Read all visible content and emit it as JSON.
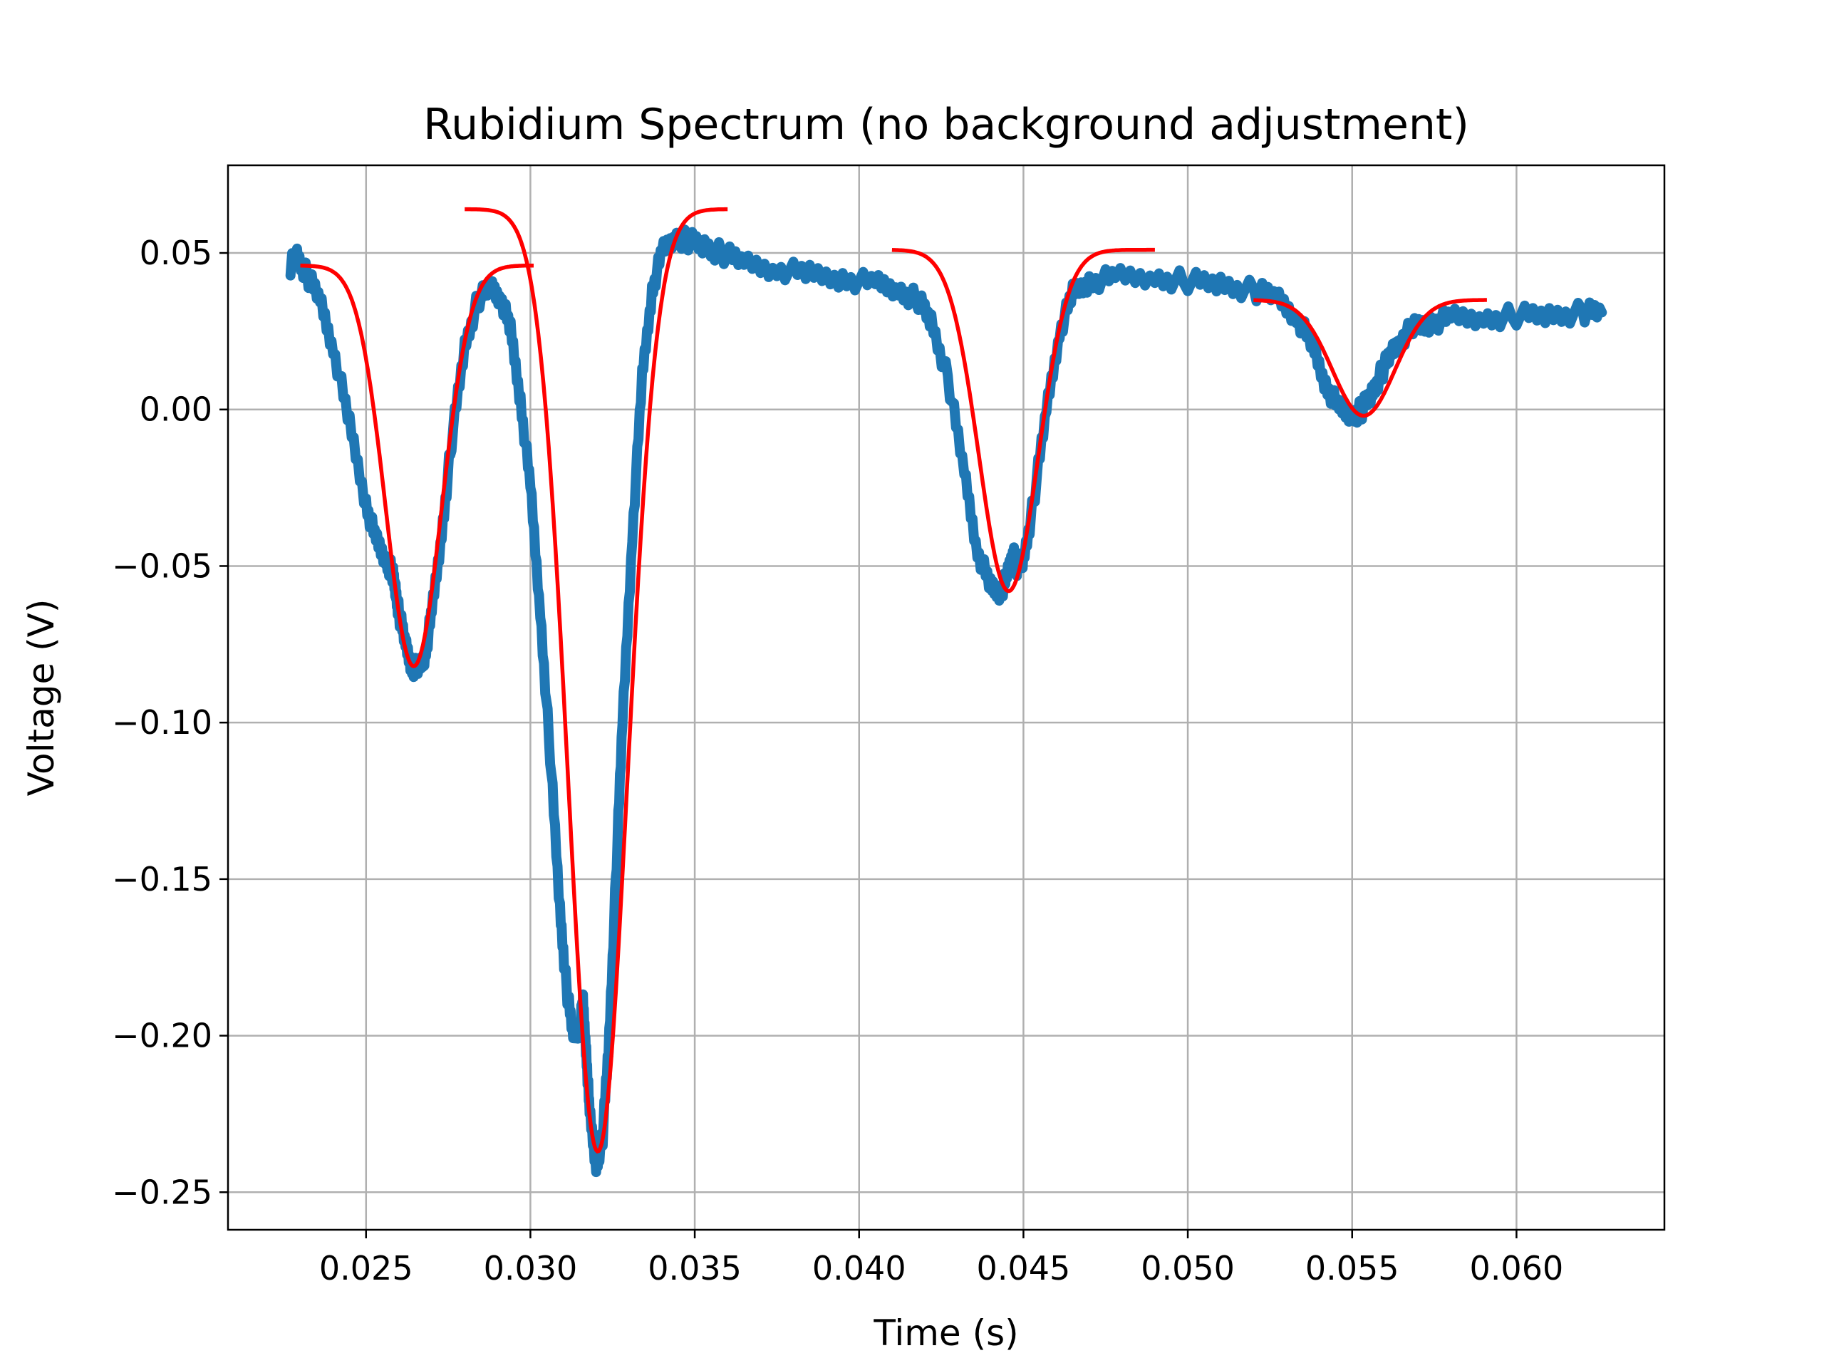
{
  "chart_data": {
    "type": "line",
    "title": "Rubidium Spectrum (no background adjustment)",
    "xlabel": "Time (s)",
    "ylabel": "Voltage (V)",
    "xlim": [
      0.0208,
      0.0645
    ],
    "ylim": [
      -0.262,
      0.078
    ],
    "xticks": [
      0.025,
      0.03,
      0.035,
      0.04,
      0.045,
      0.05,
      0.055,
      0.06
    ],
    "xtick_labels": [
      "0.025",
      "0.030",
      "0.035",
      "0.040",
      "0.045",
      "0.050",
      "0.055",
      "0.060"
    ],
    "yticks": [
      0.05,
      0.0,
      -0.05,
      -0.1,
      -0.15,
      -0.2,
      -0.25
    ],
    "ytick_labels": [
      "0.05",
      "0.00",
      "−0.05",
      "−0.10",
      "−0.15",
      "−0.20",
      "−0.25"
    ],
    "grid": true,
    "legend": "none",
    "colors": {
      "data": "#1f77b4",
      "fit": "#ff0000"
    },
    "series": [
      {
        "kind": "data",
        "x": [
          0.0227,
          0.0229,
          0.0232,
          0.0236,
          0.024,
          0.0245,
          0.025,
          0.0253,
          0.0256,
          0.0258,
          0.0259,
          0.026,
          0.0262,
          0.0264,
          0.0266,
          0.0268,
          0.027,
          0.0273,
          0.0276,
          0.028,
          0.0284,
          0.0288,
          0.0291,
          0.0294,
          0.0297,
          0.03,
          0.0303,
          0.0306,
          0.0309,
          0.0311,
          0.0313,
          0.0315,
          0.0316,
          0.0317,
          0.0318,
          0.032,
          0.0322,
          0.0324,
          0.0326,
          0.0328,
          0.0331,
          0.0334,
          0.0337,
          0.034,
          0.0344,
          0.0348,
          0.0353,
          0.0358,
          0.0365,
          0.0375,
          0.0385,
          0.0395,
          0.0405,
          0.0412,
          0.0418,
          0.0422,
          0.0427,
          0.0432,
          0.0436,
          0.044,
          0.0443,
          0.0445,
          0.0447,
          0.0448,
          0.045,
          0.0453,
          0.0457,
          0.0461,
          0.0465,
          0.047,
          0.0478,
          0.049,
          0.05,
          0.051,
          0.052,
          0.0527,
          0.0533,
          0.0538,
          0.0542,
          0.0546,
          0.055,
          0.0553,
          0.0556,
          0.0559,
          0.0562,
          0.0565,
          0.0569,
          0.0574,
          0.058,
          0.059,
          0.06,
          0.061,
          0.062,
          0.0626
        ],
        "y": [
          0.046,
          0.049,
          0.043,
          0.035,
          0.02,
          -0.005,
          -0.03,
          -0.042,
          -0.048,
          -0.052,
          -0.058,
          -0.065,
          -0.075,
          -0.082,
          -0.083,
          -0.078,
          -0.065,
          -0.04,
          -0.01,
          0.02,
          0.035,
          0.039,
          0.036,
          0.025,
          0.003,
          -0.025,
          -0.065,
          -0.11,
          -0.16,
          -0.185,
          -0.2,
          -0.197,
          -0.19,
          -0.205,
          -0.225,
          -0.242,
          -0.232,
          -0.2,
          -0.15,
          -0.1,
          -0.04,
          0.01,
          0.038,
          0.05,
          0.055,
          0.054,
          0.052,
          0.05,
          0.047,
          0.045,
          0.043,
          0.042,
          0.04,
          0.038,
          0.035,
          0.028,
          0.01,
          -0.02,
          -0.045,
          -0.057,
          -0.058,
          -0.054,
          -0.045,
          -0.05,
          -0.048,
          -0.03,
          0.0,
          0.025,
          0.037,
          0.041,
          0.042,
          0.042,
          0.041,
          0.04,
          0.038,
          0.036,
          0.03,
          0.02,
          0.008,
          0.0,
          -0.002,
          0.0,
          0.005,
          0.012,
          0.018,
          0.023,
          0.026,
          0.028,
          0.029,
          0.029,
          0.03,
          0.03,
          0.031,
          0.031
        ]
      },
      {
        "kind": "fit",
        "model": "gaussian",
        "x_range": [
          0.023,
          0.0301
        ],
        "baseline": 0.046,
        "amplitude": -0.128,
        "center": 0.02645,
        "sigma": 0.00085
      },
      {
        "kind": "fit",
        "model": "gaussian",
        "x_range": [
          0.028,
          0.036
        ],
        "baseline": 0.064,
        "amplitude": -0.301,
        "center": 0.03205,
        "sigma": 0.0009
      },
      {
        "kind": "fit",
        "model": "gaussian",
        "x_range": [
          0.041,
          0.049
        ],
        "baseline": 0.051,
        "amplitude": -0.109,
        "center": 0.04455,
        "sigma": 0.0009
      },
      {
        "kind": "fit",
        "model": "gaussian",
        "x_range": [
          0.052,
          0.0591
        ],
        "baseline": 0.035,
        "amplitude": -0.037,
        "center": 0.05535,
        "sigma": 0.00095
      }
    ]
  }
}
